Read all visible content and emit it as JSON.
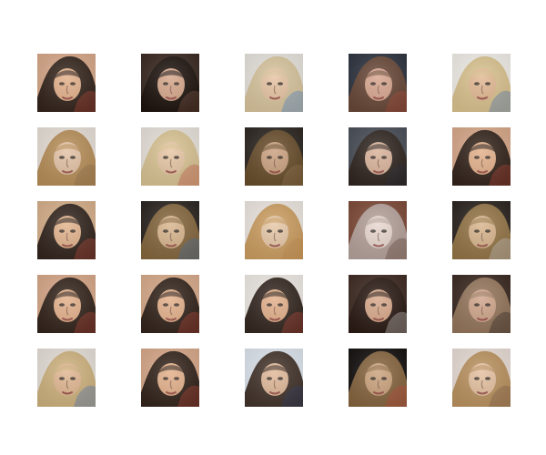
{
  "grid": {
    "rows": 5,
    "cols": 5,
    "tiles": [
      {
        "bg": "#d9a98a",
        "hair": "#2b1d16",
        "skin": "#e3b08a",
        "artifact": "#c9473a"
      },
      {
        "bg": "#3a2a22",
        "hair": "#1c130f",
        "skin": "#d6a68a",
        "artifact": "#8a5a48"
      },
      {
        "bg": "#e8e4de",
        "hair": "#d8c39a",
        "skin": "#e6c3a2",
        "artifact": "#3d7fd0"
      },
      {
        "bg": "#2e3440",
        "hair": "#6b4a38",
        "skin": "#d7a58e",
        "artifact": "#b84a3a"
      },
      {
        "bg": "#f2efe9",
        "hair": "#d8c08a",
        "skin": "#e2b892",
        "artifact": "#3f6fbf"
      },
      {
        "bg": "#e8e0d8",
        "hair": "#b58a52",
        "skin": "#e3c2a4",
        "artifact": "#8c6b48"
      },
      {
        "bg": "#e9e4dc",
        "hair": "#d9c28f",
        "skin": "#e7c6a4",
        "artifact": "#c14b3c"
      },
      {
        "bg": "#2d2722",
        "hair": "#6b4f2c",
        "skin": "#caa07e",
        "artifact": "#9a7b52"
      },
      {
        "bg": "#4a4f58",
        "hair": "#2f2520",
        "skin": "#d9b39a",
        "artifact": "#2a2f38"
      },
      {
        "bg": "#d9a98a",
        "hair": "#2b1d16",
        "skin": "#e3b08a",
        "artifact": "#c9473a"
      },
      {
        "bg": "#d7b08b",
        "hair": "#2a1e18",
        "skin": "#e2b38c",
        "artifact": "#c94c3c"
      },
      {
        "bg": "#2b2520",
        "hair": "#8a6a40",
        "skin": "#d7b48c",
        "artifact": "#3c6fb0"
      },
      {
        "bg": "#eee8e2",
        "hair": "#c99a5a",
        "skin": "#e6c7a6",
        "artifact": "#c48a4a"
      },
      {
        "bg": "#7e4a38",
        "hair": "#b9a6a0",
        "skin": "#e8d7cf",
        "artifact": "#5a3a2c"
      },
      {
        "bg": "#2b2420",
        "hair": "#9a7a4a",
        "skin": "#d8b48c",
        "artifact": "#d0d4da"
      },
      {
        "bg": "#d9a98a",
        "hair": "#2b1d16",
        "skin": "#e3b08a",
        "artifact": "#c9473a"
      },
      {
        "bg": "#d9ab8b",
        "hair": "#2b1d16",
        "skin": "#e3b08a",
        "artifact": "#c9473a"
      },
      {
        "bg": "#f0ebe6",
        "hair": "#2a1d16",
        "skin": "#e3b08a",
        "artifact": "#c9473a"
      },
      {
        "bg": "#3e2a22",
        "hair": "#2a1a14",
        "skin": "#d8a88a",
        "artifact": "#e6e2de"
      },
      {
        "bg": "#3b2a22",
        "hair": "#9a7a60",
        "skin": "#cfa489",
        "artifact": "#1e1a18"
      },
      {
        "bg": "#e6e0d8",
        "hair": "#cdb07a",
        "skin": "#e0b690",
        "artifact": "#3b6fc0"
      },
      {
        "bg": "#d9a98a",
        "hair": "#2b1d16",
        "skin": "#e3b08a",
        "artifact": "#c9473a"
      },
      {
        "bg": "#dfe6ee",
        "hair": "#3a2a20",
        "skin": "#e0b898",
        "artifact": "#2b3f6a"
      },
      {
        "bg": "#141110",
        "hair": "#8c6a42",
        "skin": "#caa27c",
        "artifact": "#c9473a"
      },
      {
        "bg": "#e9ddd6",
        "hair": "#b88e5a",
        "skin": "#e4c0a0",
        "artifact": "#7a5a46"
      }
    ]
  }
}
